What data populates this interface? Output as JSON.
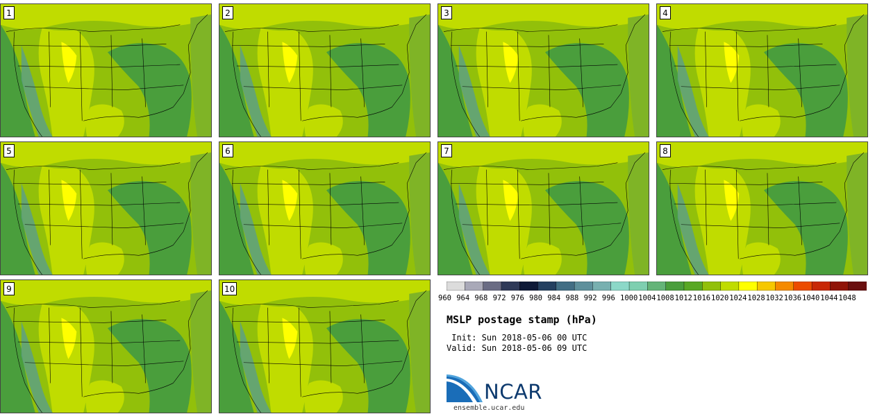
{
  "panels": [
    {
      "label": "1"
    },
    {
      "label": "2"
    },
    {
      "label": "3"
    },
    {
      "label": "4"
    },
    {
      "label": "5"
    },
    {
      "label": "6"
    },
    {
      "label": "7"
    },
    {
      "label": "8"
    },
    {
      "label": "9"
    },
    {
      "label": "10"
    }
  ],
  "colorbar": {
    "ticks": [
      "960",
      "964",
      "968",
      "972",
      "976",
      "980",
      "984",
      "988",
      "992",
      "996",
      "1000",
      "1004",
      "1008",
      "1012",
      "1016",
      "1020",
      "1024",
      "1028",
      "1032",
      "1036",
      "1040",
      "1044",
      "1048"
    ],
    "colors": [
      "#dcdcdc",
      "#a9a9b8",
      "#6a6c84",
      "#2f3a58",
      "#0e1a38",
      "#244060",
      "#426e84",
      "#5e909c",
      "#78b0b0",
      "#8cd8c8",
      "#7ecfb0",
      "#64b478",
      "#4a9e3c",
      "#58a824",
      "#92c00a",
      "#c0dc00",
      "#ffff00",
      "#f6c800",
      "#f58a00",
      "#ec4c00",
      "#c82806",
      "#901408",
      "#6a1010"
    ]
  },
  "map_colors": {
    "base": "#92c00a",
    "low": "#4a9e3c",
    "mid_low": "#7fb426",
    "high": "#c0dc00",
    "peak": "#ffff00",
    "trough": "#5a9e8a"
  },
  "title": "MSLP postage stamp (hPa)",
  "init": " Init: Sun 2018-05-06 00 UTC",
  "valid": "Valid: Sun 2018-05-06 09 UTC",
  "logo": {
    "text": "NCAR",
    "site": "ensemble.ucar.edu"
  }
}
